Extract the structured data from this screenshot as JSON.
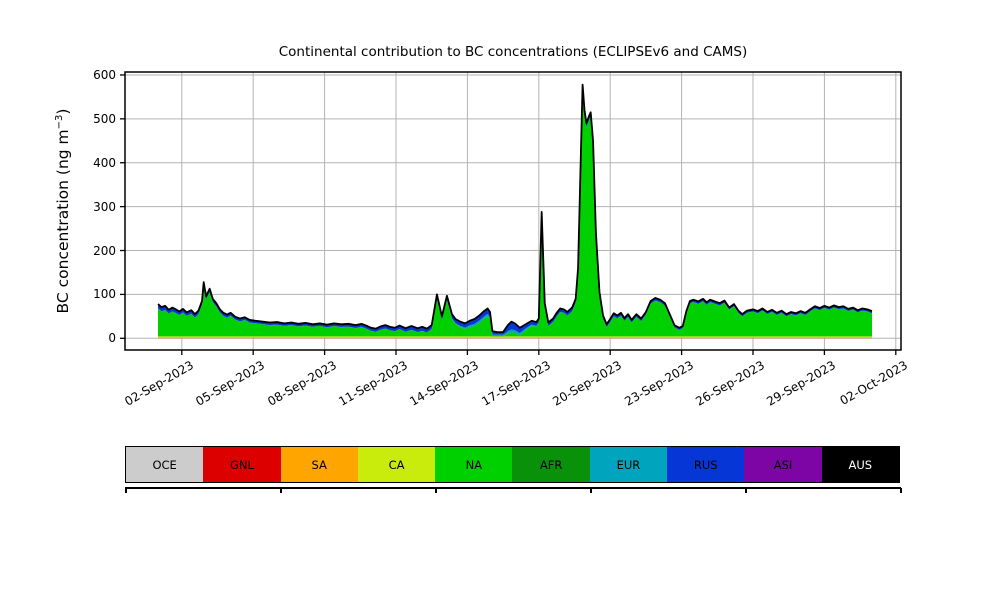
{
  "figure_background": "#ffffff",
  "chart_data": {
    "type": "area",
    "stacked": true,
    "title": "Continental contribution to BC concentrations (ECLIPSEv6 and CAMS)",
    "ylabel": "BC concentration (ng m-3)",
    "ylabel_prefix": "BC concentration (ng m",
    "ylabel_sup": "−3",
    "ylabel_suffix": ")",
    "xlabel": "",
    "grid": true,
    "grid_color": "#b3b3b3",
    "axis_color": "#000000",
    "ylim": [
      -27,
      607
    ],
    "y_ticks": [
      0,
      100,
      200,
      300,
      400,
      500,
      600
    ],
    "x_tick_days": [
      1,
      4,
      7,
      10,
      13,
      16,
      19,
      22,
      25,
      28,
      31
    ],
    "x_tick_labels": [
      "02-Sep-2023",
      "05-Sep-2023",
      "08-Sep-2023",
      "11-Sep-2023",
      "14-Sep-2023",
      "17-Sep-2023",
      "20-Sep-2023",
      "23-Sep-2023",
      "26-Sep-2023",
      "29-Sep-2023",
      "02-Oct-2023"
    ],
    "x_data_range": [
      "01-Sep-2023 00:00",
      "01-Oct-2023 00:00"
    ],
    "series_order_bottom_to_top": [
      "OCE",
      "GNL",
      "SA",
      "CA",
      "NA",
      "AFR",
      "EUR",
      "RUS",
      "ASI",
      "AUS"
    ],
    "legend": [
      {
        "label": "OCE",
        "color": "#cccccc",
        "text_color": "#000000"
      },
      {
        "label": "GNL",
        "color": "#dd0000",
        "text_color": "#000000"
      },
      {
        "label": "SA",
        "color": "#ffa500",
        "text_color": "#000000"
      },
      {
        "label": "CA",
        "color": "#c9ec0c",
        "text_color": "#000000"
      },
      {
        "label": "NA",
        "color": "#00d000",
        "text_color": "#000000"
      },
      {
        "label": "AFR",
        "color": "#0a910a",
        "text_color": "#000000"
      },
      {
        "label": "EUR",
        "color": "#00a5bd",
        "text_color": "#000000"
      },
      {
        "label": "RUS",
        "color": "#0736d6",
        "text_color": "#000000"
      },
      {
        "label": "ASI",
        "color": "#7d05a5",
        "text_color": "#000000"
      },
      {
        "label": "AUS",
        "color": "#000000",
        "text_color": "#ffffff"
      }
    ],
    "outline_color": "#000000",
    "units": "ng m-3",
    "total_series_days_values": [
      [
        0.0,
        78
      ],
      [
        0.15,
        71
      ],
      [
        0.3,
        74
      ],
      [
        0.45,
        65
      ],
      [
        0.6,
        70
      ],
      [
        0.75,
        66
      ],
      [
        0.9,
        61
      ],
      [
        1.05,
        67
      ],
      [
        1.2,
        59
      ],
      [
        1.4,
        64
      ],
      [
        1.55,
        55
      ],
      [
        1.7,
        63
      ],
      [
        1.85,
        85
      ],
      [
        1.92,
        128
      ],
      [
        2.02,
        96
      ],
      [
        2.17,
        113
      ],
      [
        2.3,
        90
      ],
      [
        2.45,
        80
      ],
      [
        2.6,
        66
      ],
      [
        2.75,
        58
      ],
      [
        2.9,
        54
      ],
      [
        3.05,
        58
      ],
      [
        3.25,
        49
      ],
      [
        3.45,
        45
      ],
      [
        3.65,
        48
      ],
      [
        3.85,
        42
      ],
      [
        4.1,
        40
      ],
      [
        4.4,
        38
      ],
      [
        4.7,
        36
      ],
      [
        5.0,
        37
      ],
      [
        5.3,
        34
      ],
      [
        5.6,
        36
      ],
      [
        5.9,
        33
      ],
      [
        6.2,
        35
      ],
      [
        6.5,
        32
      ],
      [
        6.8,
        34
      ],
      [
        7.1,
        31
      ],
      [
        7.4,
        34
      ],
      [
        7.7,
        32
      ],
      [
        8.0,
        33
      ],
      [
        8.3,
        30
      ],
      [
        8.55,
        33
      ],
      [
        8.75,
        29
      ],
      [
        8.95,
        24
      ],
      [
        9.15,
        22
      ],
      [
        9.35,
        27
      ],
      [
        9.55,
        30
      ],
      [
        9.75,
        26
      ],
      [
        9.95,
        24
      ],
      [
        10.15,
        29
      ],
      [
        10.4,
        23
      ],
      [
        10.65,
        28
      ],
      [
        10.9,
        23
      ],
      [
        11.1,
        26
      ],
      [
        11.3,
        22
      ],
      [
        11.5,
        30
      ],
      [
        11.72,
        100
      ],
      [
        11.93,
        50
      ],
      [
        12.14,
        97
      ],
      [
        12.35,
        55
      ],
      [
        12.5,
        44
      ],
      [
        12.7,
        38
      ],
      [
        12.9,
        34
      ],
      [
        13.1,
        40
      ],
      [
        13.3,
        44
      ],
      [
        13.5,
        52
      ],
      [
        13.7,
        62
      ],
      [
        13.85,
        68
      ],
      [
        13.95,
        60
      ],
      [
        14.05,
        16
      ],
      [
        14.25,
        14
      ],
      [
        14.5,
        13
      ],
      [
        14.7,
        30
      ],
      [
        14.85,
        38
      ],
      [
        15.0,
        34
      ],
      [
        15.2,
        24
      ],
      [
        15.45,
        32
      ],
      [
        15.7,
        40
      ],
      [
        15.9,
        37
      ],
      [
        16.0,
        45
      ],
      [
        16.12,
        288
      ],
      [
        16.25,
        80
      ],
      [
        16.4,
        36
      ],
      [
        16.6,
        45
      ],
      [
        16.75,
        58
      ],
      [
        16.9,
        68
      ],
      [
        17.05,
        66
      ],
      [
        17.2,
        60
      ],
      [
        17.4,
        70
      ],
      [
        17.55,
        90
      ],
      [
        17.65,
        160
      ],
      [
        17.75,
        380
      ],
      [
        17.84,
        578
      ],
      [
        17.92,
        520
      ],
      [
        18.0,
        490
      ],
      [
        18.1,
        505
      ],
      [
        18.18,
        515
      ],
      [
        18.28,
        450
      ],
      [
        18.4,
        240
      ],
      [
        18.55,
        105
      ],
      [
        18.7,
        52
      ],
      [
        18.85,
        32
      ],
      [
        19.0,
        44
      ],
      [
        19.15,
        57
      ],
      [
        19.3,
        52
      ],
      [
        19.45,
        58
      ],
      [
        19.6,
        46
      ],
      [
        19.75,
        55
      ],
      [
        19.9,
        42
      ],
      [
        20.1,
        55
      ],
      [
        20.3,
        45
      ],
      [
        20.5,
        60
      ],
      [
        20.7,
        85
      ],
      [
        20.9,
        92
      ],
      [
        21.1,
        88
      ],
      [
        21.3,
        80
      ],
      [
        21.5,
        55
      ],
      [
        21.7,
        30
      ],
      [
        21.9,
        24
      ],
      [
        22.05,
        28
      ],
      [
        22.2,
        62
      ],
      [
        22.35,
        85
      ],
      [
        22.5,
        88
      ],
      [
        22.7,
        84
      ],
      [
        22.9,
        90
      ],
      [
        23.05,
        82
      ],
      [
        23.2,
        88
      ],
      [
        23.4,
        84
      ],
      [
        23.6,
        80
      ],
      [
        23.8,
        86
      ],
      [
        24.0,
        70
      ],
      [
        24.2,
        78
      ],
      [
        24.4,
        62
      ],
      [
        24.55,
        55
      ],
      [
        24.75,
        63
      ],
      [
        25.0,
        66
      ],
      [
        25.2,
        62
      ],
      [
        25.4,
        68
      ],
      [
        25.6,
        60
      ],
      [
        25.8,
        65
      ],
      [
        26.0,
        58
      ],
      [
        26.2,
        63
      ],
      [
        26.4,
        55
      ],
      [
        26.6,
        60
      ],
      [
        26.8,
        57
      ],
      [
        27.0,
        62
      ],
      [
        27.2,
        58
      ],
      [
        27.4,
        66
      ],
      [
        27.6,
        73
      ],
      [
        27.8,
        69
      ],
      [
        28.0,
        74
      ],
      [
        28.2,
        70
      ],
      [
        28.4,
        75
      ],
      [
        28.6,
        71
      ],
      [
        28.8,
        73
      ],
      [
        29.0,
        67
      ],
      [
        29.2,
        70
      ],
      [
        29.4,
        64
      ],
      [
        29.6,
        68
      ],
      [
        29.8,
        66
      ],
      [
        30.0,
        62
      ]
    ],
    "rus_layer_keys_days_values": [
      [
        0,
        9
      ],
      [
        0.5,
        8
      ],
      [
        1,
        7
      ],
      [
        2,
        7
      ],
      [
        3,
        6
      ],
      [
        4,
        5
      ],
      [
        7,
        5
      ],
      [
        9,
        6
      ],
      [
        10,
        7
      ],
      [
        11,
        8
      ],
      [
        11.72,
        8
      ],
      [
        12.14,
        8
      ],
      [
        12.5,
        9
      ],
      [
        13,
        9
      ],
      [
        13.5,
        11
      ],
      [
        13.9,
        12
      ],
      [
        14.1,
        5
      ],
      [
        14.5,
        5
      ],
      [
        14.7,
        13
      ],
      [
        14.85,
        17
      ],
      [
        15,
        15
      ],
      [
        15.3,
        9
      ],
      [
        15.7,
        8
      ],
      [
        16.12,
        8
      ],
      [
        16.5,
        7
      ],
      [
        17,
        7
      ],
      [
        17.5,
        8
      ],
      [
        17.84,
        9
      ],
      [
        18.3,
        8
      ],
      [
        18.7,
        6
      ],
      [
        19,
        6
      ],
      [
        20,
        5
      ],
      [
        21,
        5
      ],
      [
        22,
        4
      ],
      [
        23,
        5
      ],
      [
        24,
        4
      ],
      [
        26,
        4
      ],
      [
        28,
        4
      ],
      [
        30,
        4
      ]
    ],
    "eur_layer_keys_days_values": [
      [
        0,
        0
      ],
      [
        12,
        0
      ],
      [
        12.4,
        1
      ],
      [
        12.9,
        3
      ],
      [
        13.4,
        5
      ],
      [
        13.9,
        5
      ],
      [
        14.1,
        3
      ],
      [
        14.5,
        3
      ],
      [
        14.8,
        6
      ],
      [
        15.2,
        5
      ],
      [
        15.6,
        3
      ],
      [
        16,
        1
      ],
      [
        16.4,
        0
      ],
      [
        30,
        0
      ]
    ],
    "thin_layer_thickness_ng": {
      "OCE": 0.2,
      "GNL": 0.2,
      "SA": 2.0,
      "CA": 2.0,
      "AFR": 0.8,
      "ASI": 0.3,
      "AUS": 0.5
    }
  }
}
